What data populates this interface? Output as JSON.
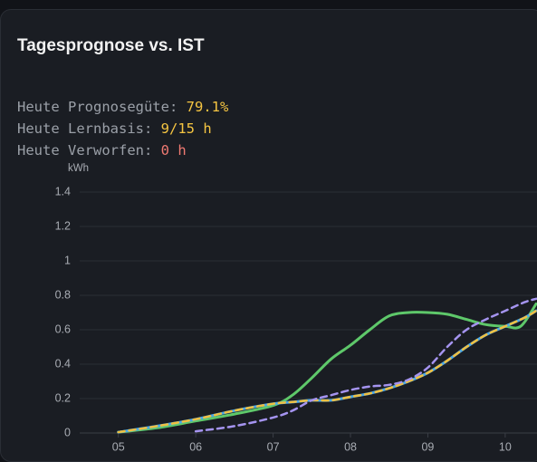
{
  "card": {
    "title": "Tagesprognose vs. IST",
    "stats": [
      {
        "label": "Heute Prognosegüte:",
        "value": "79.1%"
      },
      {
        "label": "Heute Lernbasis:",
        "value": "9/15 h"
      },
      {
        "label": "Heute Verworfen:",
        "value": "0 h"
      }
    ]
  },
  "chart_data": {
    "type": "line",
    "y_label": "kWh",
    "xlim": [
      4.5,
      10.5
    ],
    "xticks": [
      {
        "value": 5,
        "label": "05"
      },
      {
        "value": 6,
        "label": "06"
      },
      {
        "value": 7,
        "label": "07"
      },
      {
        "value": 8,
        "label": "08"
      },
      {
        "value": 9,
        "label": "09"
      },
      {
        "value": 10,
        "label": "10"
      }
    ],
    "ylim": [
      0,
      1.4
    ],
    "yticks": [
      0,
      0.2,
      0.4,
      0.6,
      0.8,
      1,
      1.2,
      1.4
    ],
    "grid": true,
    "series": [
      {
        "color": "#5ec86a",
        "dashed": false,
        "x": [
          5,
          5.5,
          6,
          6.5,
          7,
          7.25,
          7.5,
          7.75,
          8,
          8.25,
          8.5,
          8.75,
          9,
          9.25,
          9.5,
          9.75,
          10,
          10.2,
          10.4
        ],
        "values": [
          0.005,
          0.03,
          0.07,
          0.11,
          0.16,
          0.22,
          0.32,
          0.43,
          0.51,
          0.6,
          0.68,
          0.7,
          0.7,
          0.69,
          0.66,
          0.63,
          0.62,
          0.62,
          0.75
        ]
      },
      {
        "color": "#4aa8e8",
        "dashed": false,
        "x": [
          5,
          5.5,
          6,
          6.5,
          7,
          7.25,
          7.5,
          7.75,
          8,
          8.25,
          8.5,
          8.75,
          9,
          9.25,
          9.5,
          9.75,
          10,
          10.25,
          10.4
        ],
        "values": [
          0.005,
          0.04,
          0.08,
          0.13,
          0.17,
          0.18,
          0.19,
          0.19,
          0.21,
          0.23,
          0.26,
          0.3,
          0.35,
          0.42,
          0.5,
          0.57,
          0.62,
          0.67,
          0.71
        ]
      },
      {
        "color": "#f0c040",
        "dashed": true,
        "x": [
          5,
          5.5,
          6,
          6.5,
          7,
          7.25,
          7.5,
          7.75,
          8,
          8.25,
          8.5,
          8.75,
          9,
          9.25,
          9.5,
          9.75,
          10,
          10.25,
          10.4
        ],
        "values": [
          0.005,
          0.04,
          0.08,
          0.13,
          0.17,
          0.18,
          0.19,
          0.19,
          0.21,
          0.23,
          0.26,
          0.3,
          0.35,
          0.42,
          0.5,
          0.57,
          0.62,
          0.67,
          0.71
        ]
      },
      {
        "color": "#a594f0",
        "dashed": true,
        "x": [
          6,
          6.5,
          7,
          7.25,
          7.5,
          7.75,
          8,
          8.25,
          8.5,
          8.75,
          9,
          9.25,
          9.5,
          9.75,
          10,
          10.25,
          10.4
        ],
        "values": [
          0.01,
          0.04,
          0.09,
          0.13,
          0.19,
          0.22,
          0.25,
          0.27,
          0.28,
          0.31,
          0.38,
          0.5,
          0.6,
          0.66,
          0.71,
          0.76,
          0.78
        ]
      }
    ]
  }
}
